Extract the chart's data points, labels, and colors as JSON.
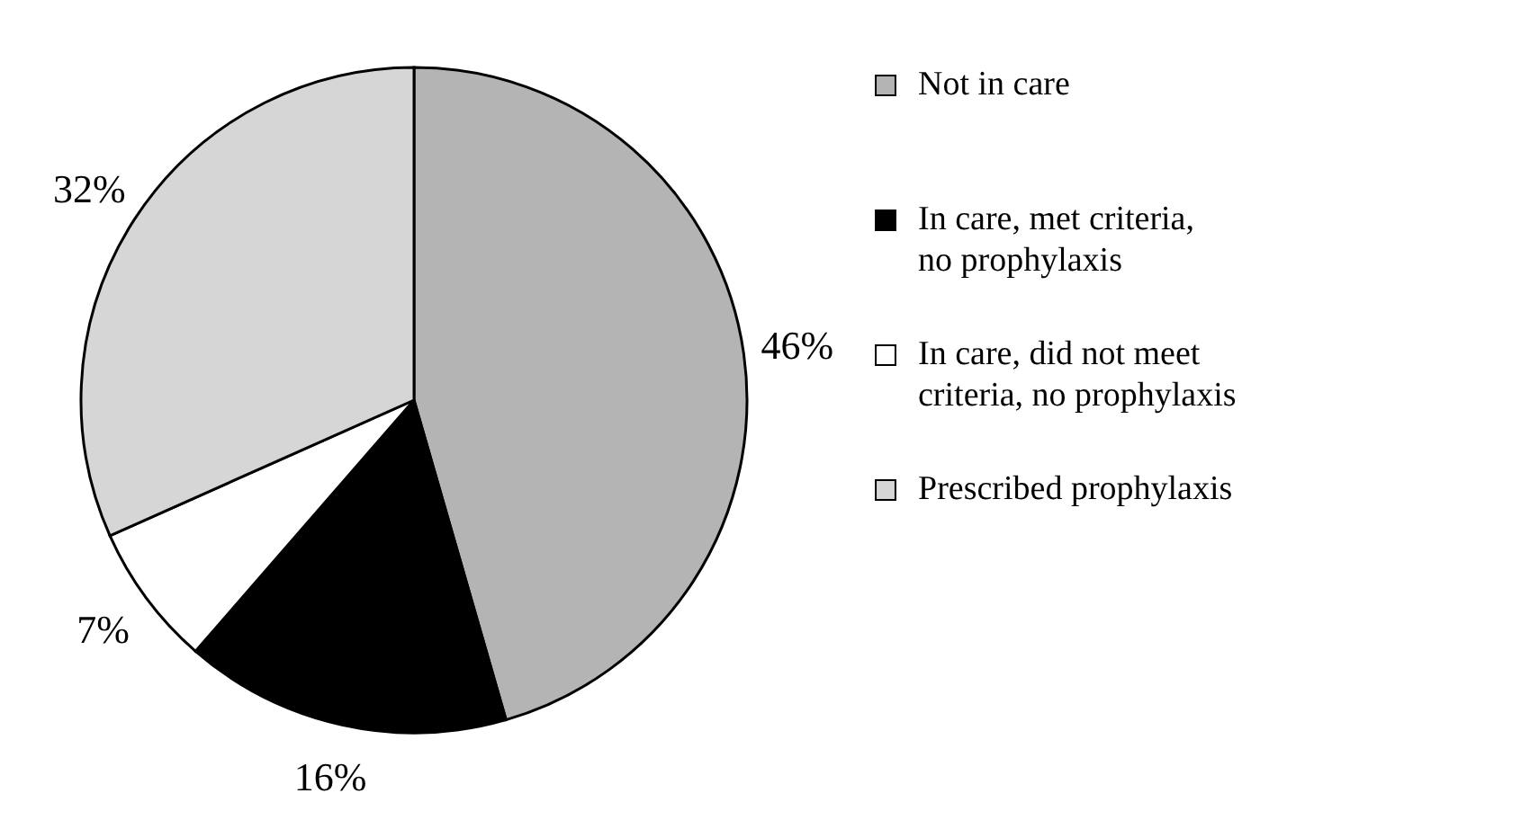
{
  "chart_data": {
    "type": "pie",
    "categories": [
      "Not in care",
      "In care, met criteria, no prophylaxis",
      "In care, did not meet criteria, no prophylaxis",
      "Prescribed prophylaxis"
    ],
    "values": [
      46,
      16,
      7,
      32
    ],
    "colors": [
      "#b4b4b4",
      "#000000",
      "#ffffff",
      "#d6d6d6"
    ],
    "value_labels": [
      "46%",
      "16%",
      "7%",
      "32%"
    ],
    "legend": "right"
  }
}
